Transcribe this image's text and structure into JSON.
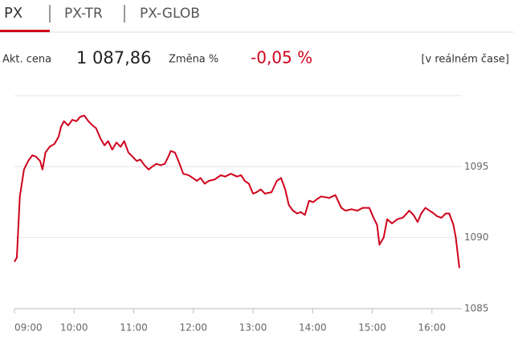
{
  "tabs": [
    "PX",
    "PX-TR",
    "PX-GLOB"
  ],
  "quote": {
    "price_label": "Akt. cena",
    "price": "1 087,86",
    "change_label": "Změna %",
    "change": "-0,05 %",
    "realtime": "[v reálném čase]"
  },
  "chart_data": {
    "type": "line",
    "color": "#d0021b",
    "x": [
      9.0,
      9.04,
      9.09,
      9.16,
      9.23,
      9.3,
      9.36,
      9.43,
      9.47,
      9.52,
      9.59,
      9.67,
      9.74,
      9.78,
      9.83,
      9.9,
      9.97,
      10.04,
      10.1,
      10.17,
      10.24,
      10.31,
      10.37,
      10.44,
      10.51,
      10.57,
      10.64,
      10.71,
      10.78,
      10.84,
      10.91,
      10.98,
      11.05,
      11.11,
      11.18,
      11.25,
      11.31,
      11.38,
      11.45,
      11.52,
      11.58,
      11.62,
      11.69,
      11.75,
      11.83,
      11.92,
      11.99,
      12.06,
      12.12,
      12.19,
      12.26,
      12.36,
      12.46,
      12.53,
      12.63,
      12.73,
      12.8,
      12.86,
      12.93,
      13.0,
      13.06,
      13.13,
      13.2,
      13.31,
      13.4,
      13.47,
      13.54,
      13.6,
      13.67,
      13.74,
      13.8,
      13.87,
      13.94,
      14.01,
      14.07,
      14.14,
      14.28,
      14.38,
      14.48,
      14.55,
      14.65,
      14.75,
      14.84,
      14.95,
      15.02,
      15.08,
      15.12,
      15.19,
      15.25,
      15.33,
      15.42,
      15.51,
      15.62,
      15.69,
      15.76,
      15.82,
      15.89,
      15.96,
      16.03,
      16.09,
      16.16,
      16.23,
      16.29,
      16.36,
      16.4,
      16.46
    ],
    "values": [
      1088.3,
      1088.6,
      1092.9,
      1094.8,
      1095.4,
      1095.8,
      1095.7,
      1095.4,
      1094.8,
      1096.0,
      1096.4,
      1096.6,
      1097.1,
      1097.8,
      1098.2,
      1097.9,
      1098.3,
      1098.2,
      1098.5,
      1098.6,
      1098.2,
      1097.9,
      1097.7,
      1097.0,
      1096.5,
      1096.8,
      1096.2,
      1096.7,
      1096.4,
      1096.8,
      1096.0,
      1095.7,
      1095.4,
      1095.5,
      1095.1,
      1094.8,
      1095.0,
      1095.2,
      1095.1,
      1095.2,
      1095.7,
      1096.1,
      1096.0,
      1095.4,
      1094.5,
      1094.4,
      1094.2,
      1094.0,
      1094.2,
      1093.8,
      1094.0,
      1094.1,
      1094.4,
      1094.3,
      1094.5,
      1094.3,
      1094.4,
      1094.0,
      1093.8,
      1093.1,
      1093.2,
      1093.4,
      1093.1,
      1093.2,
      1094.0,
      1094.2,
      1093.4,
      1092.3,
      1091.9,
      1091.7,
      1091.8,
      1091.6,
      1092.6,
      1092.5,
      1092.7,
      1092.9,
      1092.8,
      1093.0,
      1092.1,
      1091.9,
      1092.0,
      1091.9,
      1092.1,
      1092.1,
      1091.4,
      1090.9,
      1089.5,
      1090.0,
      1091.3,
      1091.0,
      1091.3,
      1091.4,
      1091.9,
      1091.6,
      1091.1,
      1091.7,
      1092.1,
      1091.9,
      1091.7,
      1091.5,
      1091.4,
      1091.7,
      1091.7,
      1090.9,
      1090.0,
      1087.86
    ],
    "xlim": [
      9,
      16.46
    ],
    "xticks": [
      {
        "value": 9,
        "label": "09:00"
      },
      {
        "value": 10,
        "label": "10:00"
      },
      {
        "value": 11,
        "label": "11:00"
      },
      {
        "value": 12,
        "label": "12:00"
      },
      {
        "value": 13,
        "label": "13:00"
      },
      {
        "value": 14,
        "label": "14:00"
      },
      {
        "value": 15,
        "label": "15:00"
      },
      {
        "value": 16,
        "label": "16:00"
      }
    ],
    "ylim": [
      1085,
      1100
    ],
    "yticks": [
      1085,
      1090,
      1095
    ],
    "grid": true
  }
}
